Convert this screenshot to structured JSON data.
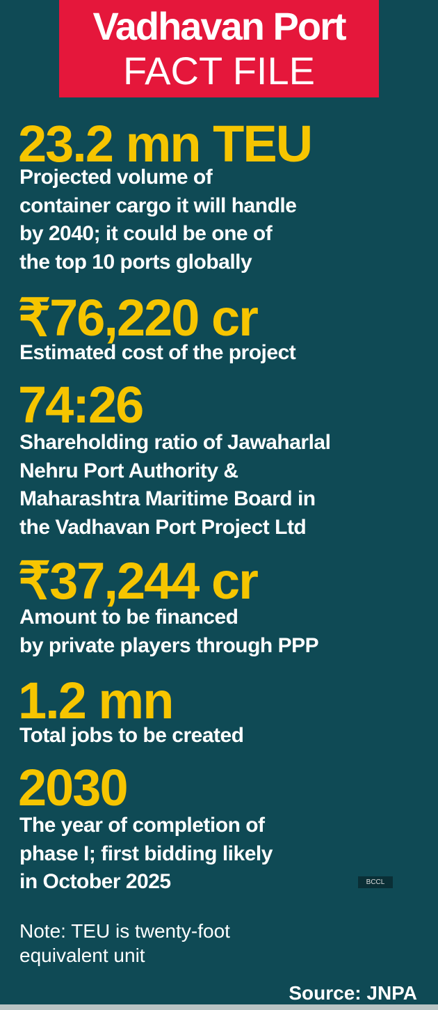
{
  "header": {
    "title": "Vadhavan Port",
    "subtitle": "FACT FILE"
  },
  "facts": [
    {
      "figure": "23.2 mn TEU",
      "description_lines": [
        "Projected volume of",
        "container cargo it will handle",
        "by 2040; it could be one of",
        "the top 10 ports globally"
      ]
    },
    {
      "figure": "₹76,220 cr",
      "description_lines": [
        "Estimated cost of the project"
      ]
    },
    {
      "figure": "74:26",
      "description_lines": [
        "Shareholding ratio of Jawaharlal",
        "Nehru Port Authority &",
        "Maharashtra Maritime Board in",
        "the Vadhavan Port Project Ltd"
      ]
    },
    {
      "figure": "₹37,244 cr",
      "description_lines": [
        "Amount to be financed",
        "by private players through PPP"
      ]
    },
    {
      "figure": "1.2 mn",
      "description_lines": [
        "Total jobs to be created"
      ]
    },
    {
      "figure": "2030",
      "description_lines": [
        "The year of completion of",
        "phase I; first bidding likely",
        "in October 2025"
      ]
    }
  ],
  "watermark": "BCCL",
  "note_lines": [
    "Note: TEU is twenty-foot",
    "equivalent unit"
  ],
  "source": "Source: JNPA"
}
